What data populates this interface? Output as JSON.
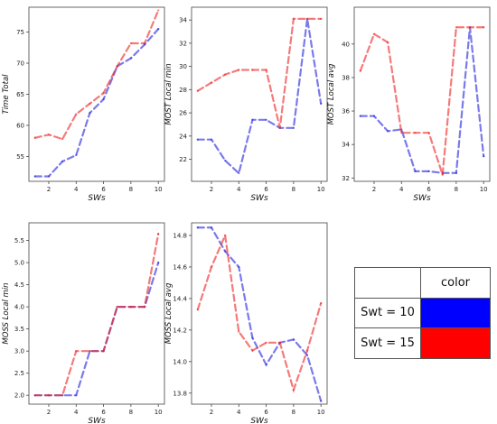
{
  "colors": {
    "series_a": "#2222dd",
    "series_b": "#ee2222"
  },
  "legend_table": {
    "header": "color",
    "rows": [
      {
        "label": "Swt = 10",
        "color": "#0000ff"
      },
      {
        "label": "Swt = 15",
        "color": "#ff0000"
      }
    ]
  },
  "chart_data": [
    {
      "type": "line",
      "xlabel": "SWs",
      "ylabel": "Time Total",
      "x": [
        1,
        2,
        3,
        4,
        5,
        6,
        7,
        8,
        9,
        10
      ],
      "xlim": [
        0.55,
        10.45
      ],
      "ylim": [
        51,
        79
      ],
      "xticks": [
        2,
        4,
        6,
        8,
        10
      ],
      "yticks": [
        55,
        60,
        65,
        70,
        75
      ],
      "series": [
        {
          "values": [
            51.8,
            51.8,
            54.2,
            55.2,
            62.0,
            64.2,
            69.5,
            70.8,
            73.0,
            75.5
          ]
        },
        {
          "values": [
            58.0,
            58.5,
            57.8,
            61.8,
            63.5,
            65.2,
            69.5,
            73.2,
            73.2,
            78.5
          ]
        }
      ]
    },
    {
      "type": "line",
      "xlabel": "SWs",
      "ylabel": "MOST Local min",
      "x": [
        1,
        2,
        3,
        4,
        5,
        6,
        7,
        8,
        9,
        10
      ],
      "xlim": [
        0.55,
        10.45
      ],
      "ylim": [
        20.1,
        35.1
      ],
      "xticks": [
        2,
        4,
        6,
        8,
        10
      ],
      "yticks": [
        22,
        24,
        26,
        28,
        30,
        32,
        34
      ],
      "series": [
        {
          "values": [
            23.7,
            23.7,
            21.9,
            20.8,
            25.4,
            25.4,
            24.7,
            24.7,
            34.1,
            26.8
          ]
        },
        {
          "values": [
            27.9,
            28.6,
            29.3,
            29.7,
            29.7,
            29.7,
            24.7,
            34.1,
            34.1,
            34.1
          ]
        }
      ]
    },
    {
      "type": "line",
      "xlabel": "SWs",
      "ylabel": "MOST Local avg",
      "x": [
        1,
        2,
        3,
        4,
        5,
        6,
        7,
        8,
        9,
        10
      ],
      "xlim": [
        0.55,
        10.45
      ],
      "ylim": [
        31.8,
        42.2
      ],
      "xticks": [
        2,
        4,
        6,
        8,
        10
      ],
      "yticks": [
        32,
        34,
        36,
        38,
        40
      ],
      "series": [
        {
          "values": [
            35.7,
            35.7,
            34.8,
            34.9,
            32.4,
            32.4,
            32.3,
            32.3,
            41.0,
            33.3
          ]
        },
        {
          "values": [
            38.4,
            40.6,
            40.1,
            34.7,
            34.7,
            34.7,
            32.2,
            41.0,
            41.0,
            41.0
          ]
        }
      ]
    },
    {
      "type": "line",
      "xlabel": "SWs",
      "ylabel": "MOSS Local min",
      "x": [
        1,
        2,
        3,
        4,
        5,
        6,
        7,
        8,
        9,
        10
      ],
      "xlim": [
        0.55,
        10.45
      ],
      "ylim": [
        1.8,
        5.9
      ],
      "xticks": [
        2,
        4,
        6,
        8,
        10
      ],
      "yticks": [
        2.0,
        2.5,
        3.0,
        3.5,
        4.0,
        4.5,
        5.0,
        5.5
      ],
      "series": [
        {
          "values": [
            2.0,
            2.0,
            2.0,
            2.0,
            3.0,
            3.0,
            4.0,
            4.0,
            4.0,
            5.0
          ]
        },
        {
          "values": [
            2.0,
            2.0,
            2.0,
            3.0,
            3.0,
            3.0,
            4.0,
            4.0,
            4.0,
            5.65
          ]
        }
      ]
    },
    {
      "type": "line",
      "xlabel": "SWs",
      "ylabel": "MOSS Local avg",
      "x": [
        1,
        2,
        3,
        4,
        5,
        6,
        7,
        8,
        9,
        10
      ],
      "xlim": [
        0.55,
        10.45
      ],
      "ylim": [
        13.73,
        14.88
      ],
      "xticks": [
        2,
        4,
        6,
        8,
        10
      ],
      "yticks": [
        13.8,
        14.0,
        14.2,
        14.4,
        14.6,
        14.8
      ],
      "series": [
        {
          "values": [
            14.85,
            14.85,
            14.7,
            14.6,
            14.15,
            13.98,
            14.12,
            14.14,
            14.04,
            13.75
          ]
        },
        {
          "values": [
            14.33,
            14.6,
            14.8,
            14.19,
            14.07,
            14.12,
            14.12,
            13.82,
            14.07,
            14.37
          ]
        }
      ]
    }
  ]
}
